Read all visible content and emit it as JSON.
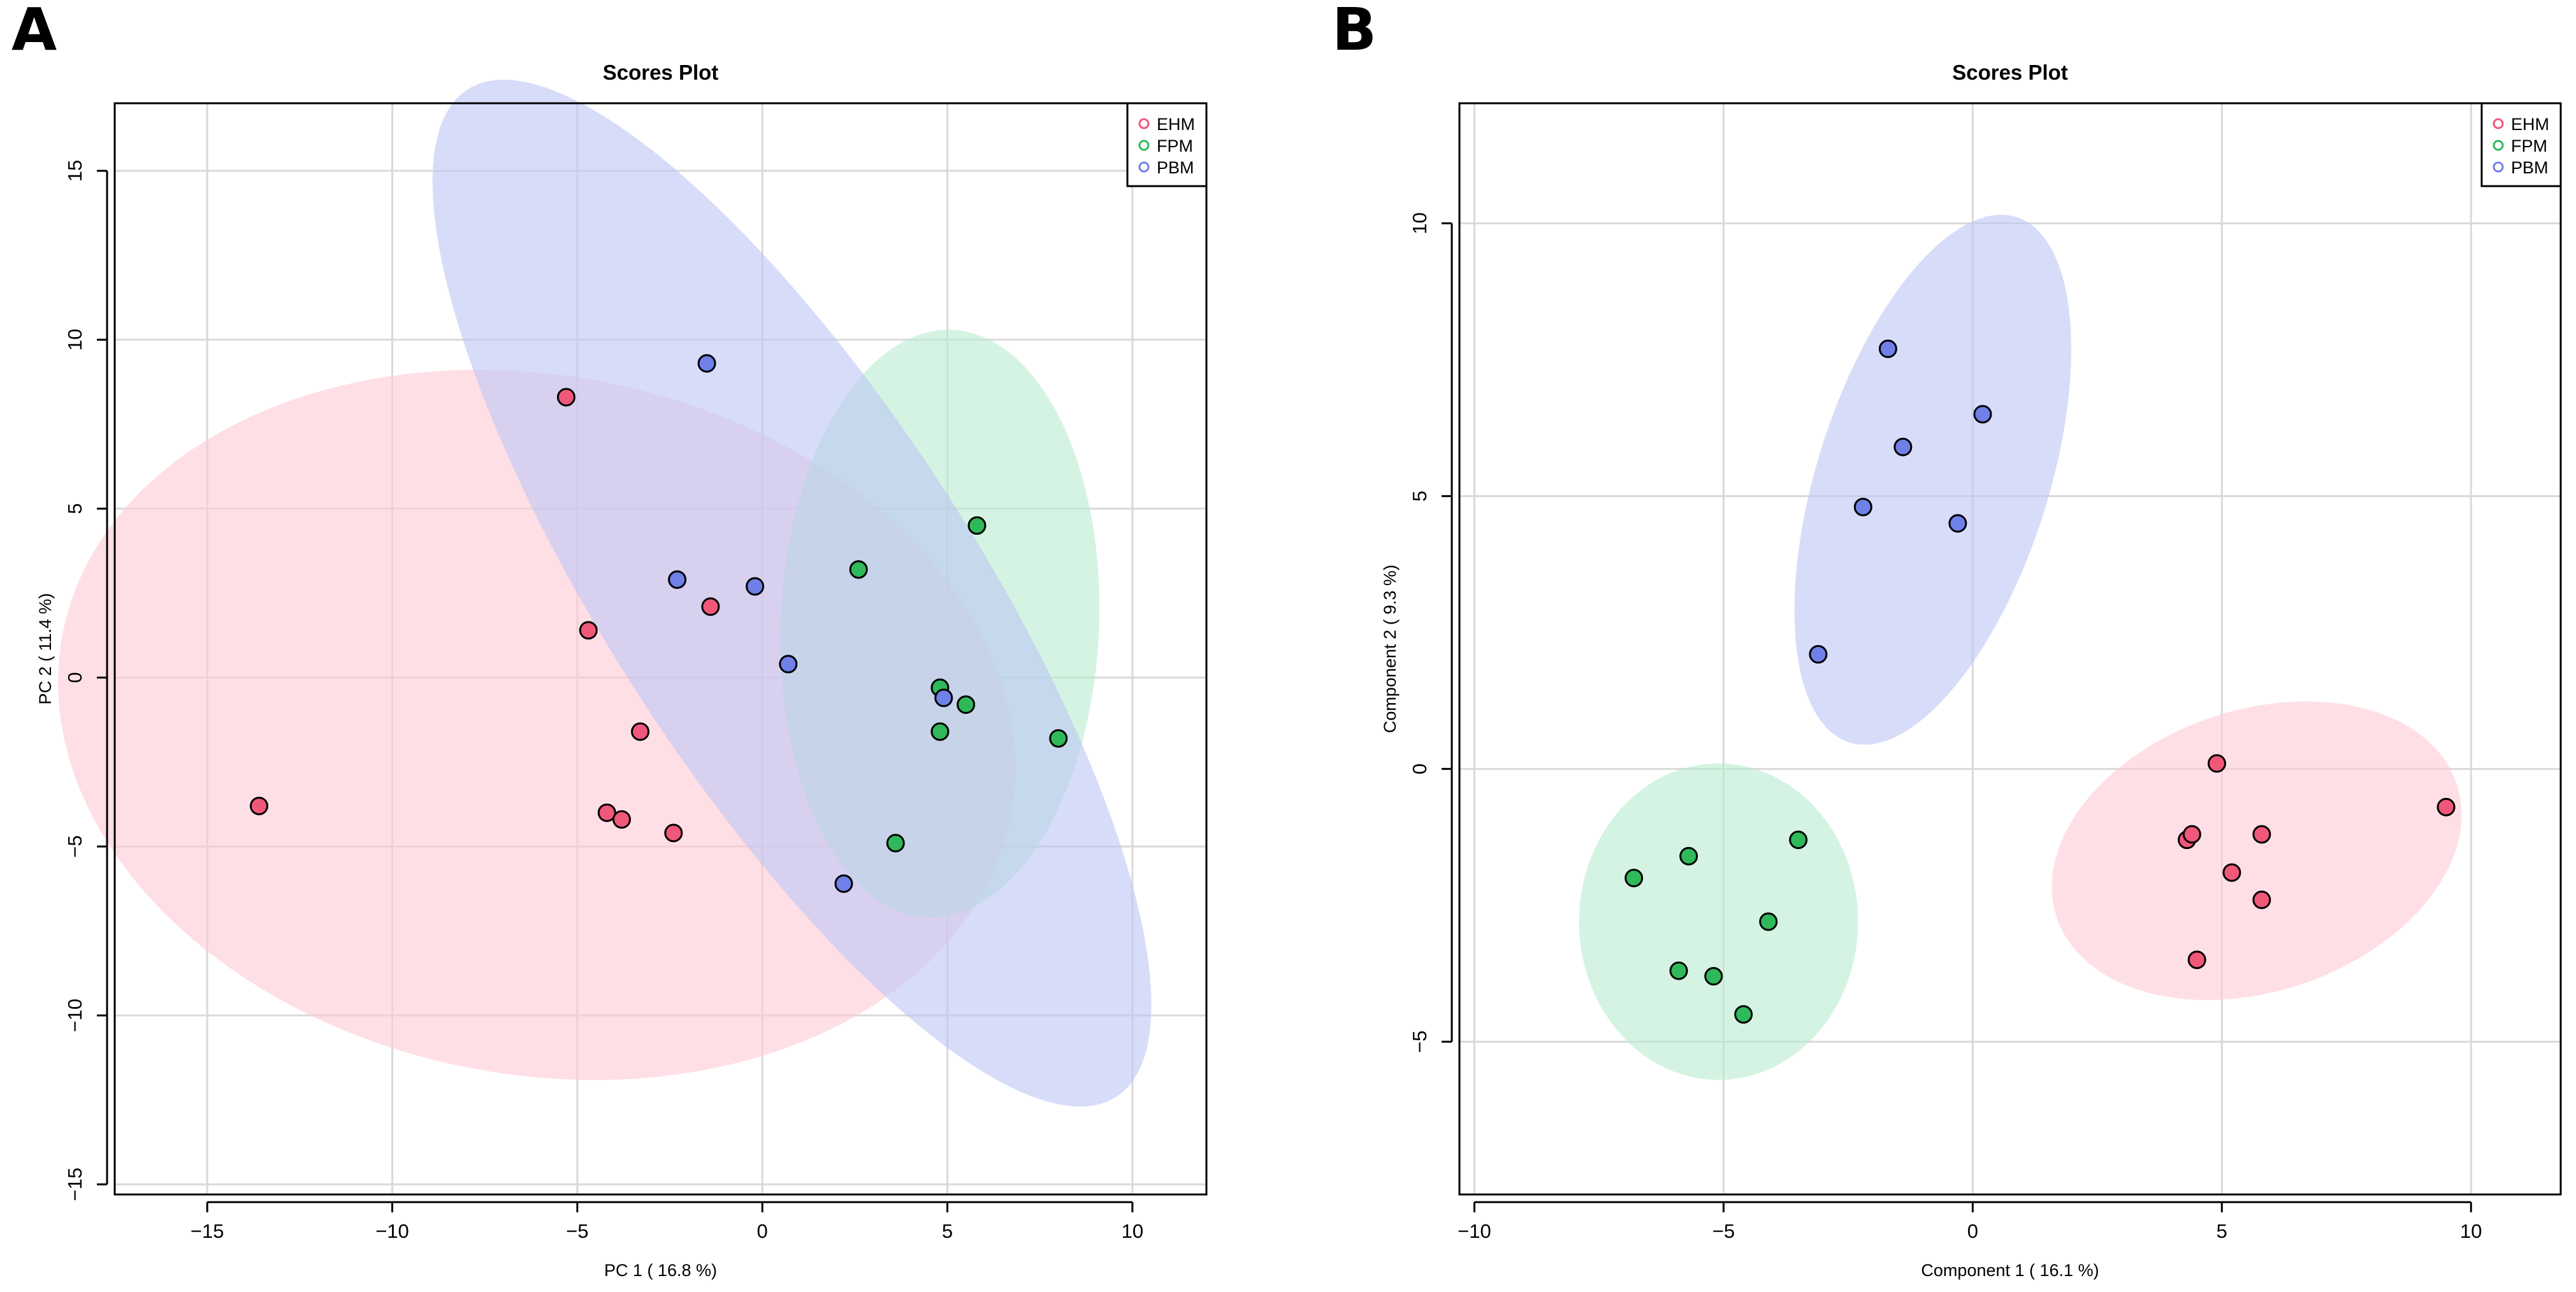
{
  "chart_data": [
    {
      "panel_label": "A",
      "type": "scatter",
      "title": "Scores Plot",
      "xlabel": "PC 1 ( 16.8 %)",
      "ylabel": "PC 2 ( 11.4 %)",
      "xlim": [
        -17.5,
        12
      ],
      "ylim": [
        -15.3,
        17
      ],
      "xticks": [
        -15,
        -10,
        -5,
        0,
        5,
        10
      ],
      "yticks": [
        -15,
        -10,
        -5,
        0,
        5,
        10,
        15
      ],
      "grid": true,
      "legend": {
        "position": "top-right",
        "marker": "open-circle"
      },
      "series": [
        {
          "name": "EHM",
          "color": "#f0587a",
          "ellipse": {
            "cx": -6.1,
            "cy": -1.4,
            "rx": 10.3,
            "ry": 13.1,
            "angle_deg": 75,
            "fill": "#ffc9d5"
          },
          "points": [
            [
              -13.6,
              -3.8
            ],
            [
              -5.3,
              8.3
            ],
            [
              -4.7,
              1.4
            ],
            [
              -1.4,
              2.1
            ],
            [
              -3.3,
              -1.6
            ],
            [
              -4.2,
              -4.0
            ],
            [
              -3.8,
              -4.2
            ],
            [
              -2.4,
              -4.6
            ]
          ]
        },
        {
          "name": "FPM",
          "color": "#2fb95a",
          "ellipse": {
            "cx": 4.8,
            "cy": 1.6,
            "rx": 8.7,
            "ry": 4.3,
            "angle_deg": 88,
            "fill": "#b9ebcf"
          },
          "points": [
            [
              5.8,
              4.5
            ],
            [
              2.6,
              3.2
            ],
            [
              4.8,
              -0.3
            ],
            [
              5.5,
              -0.8
            ],
            [
              4.8,
              -1.6
            ],
            [
              8.0,
              -1.8
            ],
            [
              3.6,
              -4.9
            ]
          ]
        },
        {
          "name": "PBM",
          "color": "#6f80e8",
          "ellipse": {
            "cx": 0.8,
            "cy": 2.5,
            "rx": 17.3,
            "ry": 5.1,
            "angle_deg": -60,
            "fill": "#bcc7f4"
          },
          "points": [
            [
              -1.5,
              9.3
            ],
            [
              -2.3,
              2.9
            ],
            [
              -0.2,
              2.7
            ],
            [
              0.7,
              0.4
            ],
            [
              4.9,
              -0.6
            ],
            [
              2.2,
              -6.1
            ]
          ]
        }
      ]
    },
    {
      "panel_label": "B",
      "type": "scatter",
      "title": "Scores Plot",
      "xlabel": "Component 1 ( 16.1 %)",
      "ylabel": "Component 2 ( 9.3 %)",
      "xlim": [
        -10.3,
        11.8
      ],
      "ylim": [
        -7.8,
        12.2
      ],
      "xticks": [
        -10,
        -5,
        0,
        5,
        10
      ],
      "yticks": [
        -5,
        0,
        5,
        10
      ],
      "grid": true,
      "legend": {
        "position": "top-right",
        "marker": "open-circle"
      },
      "series": [
        {
          "name": "EHM",
          "color": "#f0587a",
          "ellipse": {
            "cx": 5.7,
            "cy": -1.5,
            "rx": 4.2,
            "ry": 2.6,
            "angle_deg": 15,
            "fill": "#ffc9d5"
          },
          "points": [
            [
              4.9,
              0.1
            ],
            [
              9.5,
              -0.7
            ],
            [
              4.3,
              -1.3
            ],
            [
              4.4,
              -1.2
            ],
            [
              5.8,
              -1.2
            ],
            [
              5.2,
              -1.9
            ],
            [
              5.8,
              -2.4
            ],
            [
              4.5,
              -3.5
            ]
          ]
        },
        {
          "name": "FPM",
          "color": "#2fb95a",
          "ellipse": {
            "cx": -5.1,
            "cy": -2.8,
            "rx": 2.8,
            "ry": 2.9,
            "angle_deg": 0,
            "fill": "#b9ebcf"
          },
          "points": [
            [
              -3.5,
              -1.3
            ],
            [
              -5.7,
              -1.6
            ],
            [
              -6.8,
              -2.0
            ],
            [
              -4.1,
              -2.8
            ],
            [
              -5.9,
              -3.7
            ],
            [
              -5.2,
              -3.8
            ],
            [
              -4.6,
              -4.5
            ]
          ]
        },
        {
          "name": "PBM",
          "color": "#6f80e8",
          "ellipse": {
            "cx": -0.8,
            "cy": 5.3,
            "rx": 5.1,
            "ry": 2.3,
            "angle_deg": 70,
            "fill": "#bcc7f4"
          },
          "points": [
            [
              -1.7,
              7.7
            ],
            [
              0.2,
              6.5
            ],
            [
              -1.4,
              5.9
            ],
            [
              -2.2,
              4.8
            ],
            [
              -0.3,
              4.5
            ],
            [
              -3.1,
              2.1
            ]
          ]
        }
      ]
    }
  ]
}
